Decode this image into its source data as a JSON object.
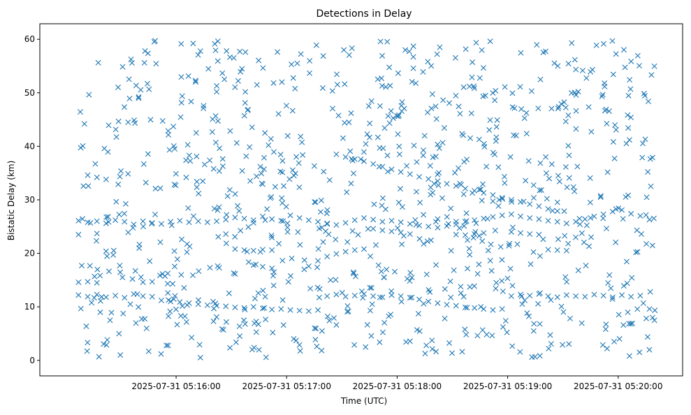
{
  "chart_data": {
    "type": "scatter",
    "title": "Detections in Delay",
    "xlabel": "Time (UTC)",
    "ylabel": "Bistatic Delay (km)",
    "marker": "x",
    "color": "#1f77b4",
    "grid": false,
    "legend": "none",
    "xlim": [
      "2025-07-31 05:14:46",
      "2025-07-31 05:20:35"
    ],
    "ylim": [
      -2.9,
      62.9
    ],
    "x_ticks": [
      "2025-07-31 05:16:00",
      "2025-07-31 05:17:00",
      "2025-07-31 05:18:00",
      "2025-07-31 05:19:00",
      "2025-07-31 05:20:00"
    ],
    "y_ticks": [
      0,
      10,
      20,
      30,
      40,
      50,
      60
    ],
    "time_range": [
      "2025-07-31 05:15:07",
      "2025-07-31 05:20:20"
    ],
    "track_points": [
      {
        "x": "05:15:07",
        "y": 26.1
      },
      {
        "x": "05:15:12",
        "y": 25.8
      },
      {
        "x": "05:15:17",
        "y": 26.0
      },
      {
        "x": "05:15:22",
        "y": 25.6
      },
      {
        "x": "05:15:27",
        "y": 26.2
      },
      {
        "x": "05:15:32",
        "y": 25.9
      },
      {
        "x": "05:15:37",
        "y": 25.4
      },
      {
        "x": "05:15:42",
        "y": 26.0
      },
      {
        "x": "05:15:47",
        "y": 25.7
      },
      {
        "x": "05:15:52",
        "y": 25.5
      },
      {
        "x": "05:15:57",
        "y": 25.9
      },
      {
        "x": "05:16:02",
        "y": 26.1
      },
      {
        "x": "05:16:07",
        "y": 25.8
      },
      {
        "x": "05:16:12",
        "y": 26.0
      },
      {
        "x": "05:16:17",
        "y": 25.8
      },
      {
        "x": "05:16:22",
        "y": 26.0
      },
      {
        "x": "05:16:27",
        "y": 26.3
      },
      {
        "x": "05:16:32",
        "y": 26.7
      },
      {
        "x": "05:16:37",
        "y": 26.5
      },
      {
        "x": "05:16:42",
        "y": 26.2
      },
      {
        "x": "05:16:47",
        "y": 26.9
      },
      {
        "x": "05:16:52",
        "y": 26.4
      },
      {
        "x": "05:16:57",
        "y": 26.1
      },
      {
        "x": "05:17:02",
        "y": 27.1
      },
      {
        "x": "05:17:07",
        "y": 26.6
      },
      {
        "x": "05:17:12",
        "y": 26.2
      },
      {
        "x": "05:17:17",
        "y": 25.9
      },
      {
        "x": "05:17:22",
        "y": 25.6
      },
      {
        "x": "05:17:27",
        "y": 25.3
      },
      {
        "x": "05:17:32",
        "y": 25.7
      },
      {
        "x": "05:17:37",
        "y": 26.2
      },
      {
        "x": "05:17:42",
        "y": 26.6
      },
      {
        "x": "05:17:47",
        "y": 26.3
      },
      {
        "x": "05:17:52",
        "y": 25.9
      },
      {
        "x": "05:17:57",
        "y": 26.1
      },
      {
        "x": "05:18:02",
        "y": 25.8
      },
      {
        "x": "05:18:07",
        "y": 25.5
      },
      {
        "x": "05:18:12",
        "y": 25.2
      },
      {
        "x": "05:18:17",
        "y": 25.0
      },
      {
        "x": "05:18:22",
        "y": 24.8
      },
      {
        "x": "05:18:27",
        "y": 25.1
      },
      {
        "x": "05:18:32",
        "y": 25.4
      },
      {
        "x": "05:18:37",
        "y": 25.9
      },
      {
        "x": "05:18:42",
        "y": 26.2
      },
      {
        "x": "05:18:47",
        "y": 26.5
      },
      {
        "x": "05:18:52",
        "y": 26.8
      },
      {
        "x": "05:18:57",
        "y": 27.1
      },
      {
        "x": "05:19:02",
        "y": 27.3
      },
      {
        "x": "05:19:07",
        "y": 26.9
      },
      {
        "x": "05:19:12",
        "y": 26.6
      },
      {
        "x": "05:19:17",
        "y": 26.4
      },
      {
        "x": "05:19:22",
        "y": 26.1
      },
      {
        "x": "05:19:27",
        "y": 25.9
      },
      {
        "x": "05:19:32",
        "y": 25.6
      },
      {
        "x": "05:19:37",
        "y": 25.9
      },
      {
        "x": "05:19:42",
        "y": 26.4
      },
      {
        "x": "05:19:47",
        "y": 26.9
      },
      {
        "x": "05:19:52",
        "y": 27.3
      },
      {
        "x": "05:19:57",
        "y": 27.8
      },
      {
        "x": "05:20:02",
        "y": 28.1
      },
      {
        "x": "05:20:07",
        "y": 27.4
      },
      {
        "x": "05:20:12",
        "y": 27.0
      },
      {
        "x": "05:20:17",
        "y": 26.3
      },
      {
        "x": "05:15:07",
        "y": 12.2
      },
      {
        "x": "05:15:12",
        "y": 11.9
      },
      {
        "x": "05:15:17",
        "y": 12.3
      },
      {
        "x": "05:15:22",
        "y": 11.8
      },
      {
        "x": "05:15:27",
        "y": 12.1
      },
      {
        "x": "05:15:32",
        "y": 11.7
      },
      {
        "x": "05:15:37",
        "y": 12.4
      },
      {
        "x": "05:15:42",
        "y": 12.0
      },
      {
        "x": "05:15:47",
        "y": 11.9
      },
      {
        "x": "05:15:52",
        "y": 11.2
      },
      {
        "x": "05:15:57",
        "y": 11.0
      },
      {
        "x": "05:16:02",
        "y": 10.9
      },
      {
        "x": "05:16:07",
        "y": 10.7
      },
      {
        "x": "05:16:12",
        "y": 10.5
      },
      {
        "x": "05:16:17",
        "y": 10.3
      },
      {
        "x": "05:16:22",
        "y": 10.2
      },
      {
        "x": "05:16:27",
        "y": 10.1
      },
      {
        "x": "05:16:32",
        "y": 9.9
      },
      {
        "x": "05:16:37",
        "y": 9.8
      },
      {
        "x": "05:16:42",
        "y": 10.0
      },
      {
        "x": "05:16:47",
        "y": 9.7
      },
      {
        "x": "05:16:52",
        "y": 9.5
      },
      {
        "x": "05:16:57",
        "y": 9.6
      },
      {
        "x": "05:17:02",
        "y": 9.4
      },
      {
        "x": "05:17:07",
        "y": 9.3
      },
      {
        "x": "05:17:12",
        "y": 9.2
      },
      {
        "x": "05:17:17",
        "y": 9.4
      },
      {
        "x": "05:17:22",
        "y": 12.0
      },
      {
        "x": "05:17:27",
        "y": 12.3
      },
      {
        "x": "05:17:32",
        "y": 11.9
      },
      {
        "x": "05:17:37",
        "y": 12.1
      },
      {
        "x": "05:17:42",
        "y": 12.4
      },
      {
        "x": "05:17:47",
        "y": 12.0
      },
      {
        "x": "05:17:52",
        "y": 11.8
      },
      {
        "x": "05:17:57",
        "y": 12.2
      },
      {
        "x": "05:18:02",
        "y": 12.0
      },
      {
        "x": "05:18:07",
        "y": 11.7
      },
      {
        "x": "05:18:12",
        "y": 11.4
      },
      {
        "x": "05:18:17",
        "y": 11.0
      },
      {
        "x": "05:18:22",
        "y": 10.7
      },
      {
        "x": "05:18:27",
        "y": 10.4
      },
      {
        "x": "05:18:32",
        "y": 10.2
      },
      {
        "x": "05:18:37",
        "y": 9.9
      },
      {
        "x": "05:18:42",
        "y": 9.8
      },
      {
        "x": "05:18:47",
        "y": 9.6
      },
      {
        "x": "05:18:52",
        "y": 9.4
      },
      {
        "x": "05:18:57",
        "y": 9.6
      },
      {
        "x": "05:19:02",
        "y": 12.0
      },
      {
        "x": "05:19:07",
        "y": 12.3
      },
      {
        "x": "05:19:12",
        "y": 12.1
      },
      {
        "x": "05:19:17",
        "y": 12.4
      },
      {
        "x": "05:19:22",
        "y": 12.0
      },
      {
        "x": "05:19:27",
        "y": 11.8
      },
      {
        "x": "05:19:32",
        "y": 12.2
      },
      {
        "x": "05:19:37",
        "y": 12.0
      },
      {
        "x": "05:19:42",
        "y": 11.9
      },
      {
        "x": "05:19:47",
        "y": 12.3
      },
      {
        "x": "05:19:52",
        "y": 12.1
      },
      {
        "x": "05:19:57",
        "y": 11.8
      },
      {
        "x": "05:20:02",
        "y": 12.2
      },
      {
        "x": "05:20:07",
        "y": 11.9
      },
      {
        "x": "05:20:12",
        "y": 12.1
      },
      {
        "x": "05:20:17",
        "y": 9.6
      },
      {
        "x": "05:15:07",
        "y": 14.6
      },
      {
        "x": "05:15:12",
        "y": 14.7
      },
      {
        "x": "05:15:17",
        "y": 14.5
      },
      {
        "x": "05:15:42",
        "y": 14.6
      },
      {
        "x": "05:15:47",
        "y": 14.7
      },
      {
        "x": "05:16:32",
        "y": 20.8
      },
      {
        "x": "05:16:37",
        "y": 20.6
      },
      {
        "x": "05:16:42",
        "y": 20.5
      },
      {
        "x": "05:16:47",
        "y": 20.7
      },
      {
        "x": "05:16:52",
        "y": 20.6
      },
      {
        "x": "05:16:42",
        "y": 17.8
      },
      {
        "x": "05:16:47",
        "y": 17.5
      },
      {
        "x": "05:16:52",
        "y": 17.2
      },
      {
        "x": "05:17:12",
        "y": 17.6
      },
      {
        "x": "05:17:17",
        "y": 18.6
      },
      {
        "x": "05:17:22",
        "y": 19.4
      },
      {
        "x": "05:17:27",
        "y": 19.9
      },
      {
        "x": "05:17:32",
        "y": 20.3
      },
      {
        "x": "05:17:37",
        "y": 20.6
      },
      {
        "x": "05:17:42",
        "y": 20.8
      },
      {
        "x": "05:15:07",
        "y": 23.5
      },
      {
        "x": "05:15:17",
        "y": 23.7
      },
      {
        "x": "05:16:27",
        "y": 23.6
      },
      {
        "x": "05:17:47",
        "y": 24.6
      },
      {
        "x": "05:17:52",
        "y": 24.3
      },
      {
        "x": "05:17:57",
        "y": 24.1
      },
      {
        "x": "05:18:02",
        "y": 23.9
      },
      {
        "x": "05:18:07",
        "y": 23.6
      },
      {
        "x": "05:18:32",
        "y": 23.5
      },
      {
        "x": "05:18:37",
        "y": 23.4
      },
      {
        "x": "05:18:42",
        "y": 23.6
      },
      {
        "x": "05:18:47",
        "y": 23.8
      },
      {
        "x": "05:19:02",
        "y": 24.0
      },
      {
        "x": "05:19:07",
        "y": 23.8
      },
      {
        "x": "05:19:12",
        "y": 23.6
      },
      {
        "x": "05:19:17",
        "y": 23.5
      },
      {
        "x": "05:19:22",
        "y": 20.7
      },
      {
        "x": "05:19:27",
        "y": 20.6
      },
      {
        "x": "05:19:32",
        "y": 20.5
      },
      {
        "x": "05:17:27",
        "y": 38.5
      },
      {
        "x": "05:17:32",
        "y": 38.0
      },
      {
        "x": "05:17:37",
        "y": 37.6
      },
      {
        "x": "05:17:42",
        "y": 37.2
      },
      {
        "x": "05:17:47",
        "y": 36.7
      },
      {
        "x": "05:17:52",
        "y": 36.2
      },
      {
        "x": "05:17:57",
        "y": 35.7
      },
      {
        "x": "05:18:02",
        "y": 35.2
      },
      {
        "x": "05:18:07",
        "y": 34.8
      },
      {
        "x": "05:18:12",
        "y": 34.3
      },
      {
        "x": "05:18:17",
        "y": 33.9
      },
      {
        "x": "05:18:22",
        "y": 33.5
      },
      {
        "x": "05:18:27",
        "y": 33.0
      },
      {
        "x": "05:18:32",
        "y": 32.6
      },
      {
        "x": "05:18:37",
        "y": 32.1
      },
      {
        "x": "05:18:42",
        "y": 31.7
      },
      {
        "x": "05:18:47",
        "y": 31.3
      },
      {
        "x": "05:18:52",
        "y": 30.9
      },
      {
        "x": "05:18:57",
        "y": 30.4
      },
      {
        "x": "05:19:02",
        "y": 30.0
      },
      {
        "x": "05:19:07",
        "y": 29.6
      },
      {
        "x": "05:19:12",
        "y": 29.2
      },
      {
        "x": "05:19:17",
        "y": 28.8
      },
      {
        "x": "05:19:22",
        "y": 28.3
      },
      {
        "x": "05:19:27",
        "y": 27.9
      },
      {
        "x": "05:15:12",
        "y": 34.6
      },
      {
        "x": "05:15:17",
        "y": 34.2
      },
      {
        "x": "05:15:22",
        "y": 33.8
      }
    ],
    "clutter_count": 900,
    "clutter_y_range": [
      0.5,
      59.8
    ]
  }
}
